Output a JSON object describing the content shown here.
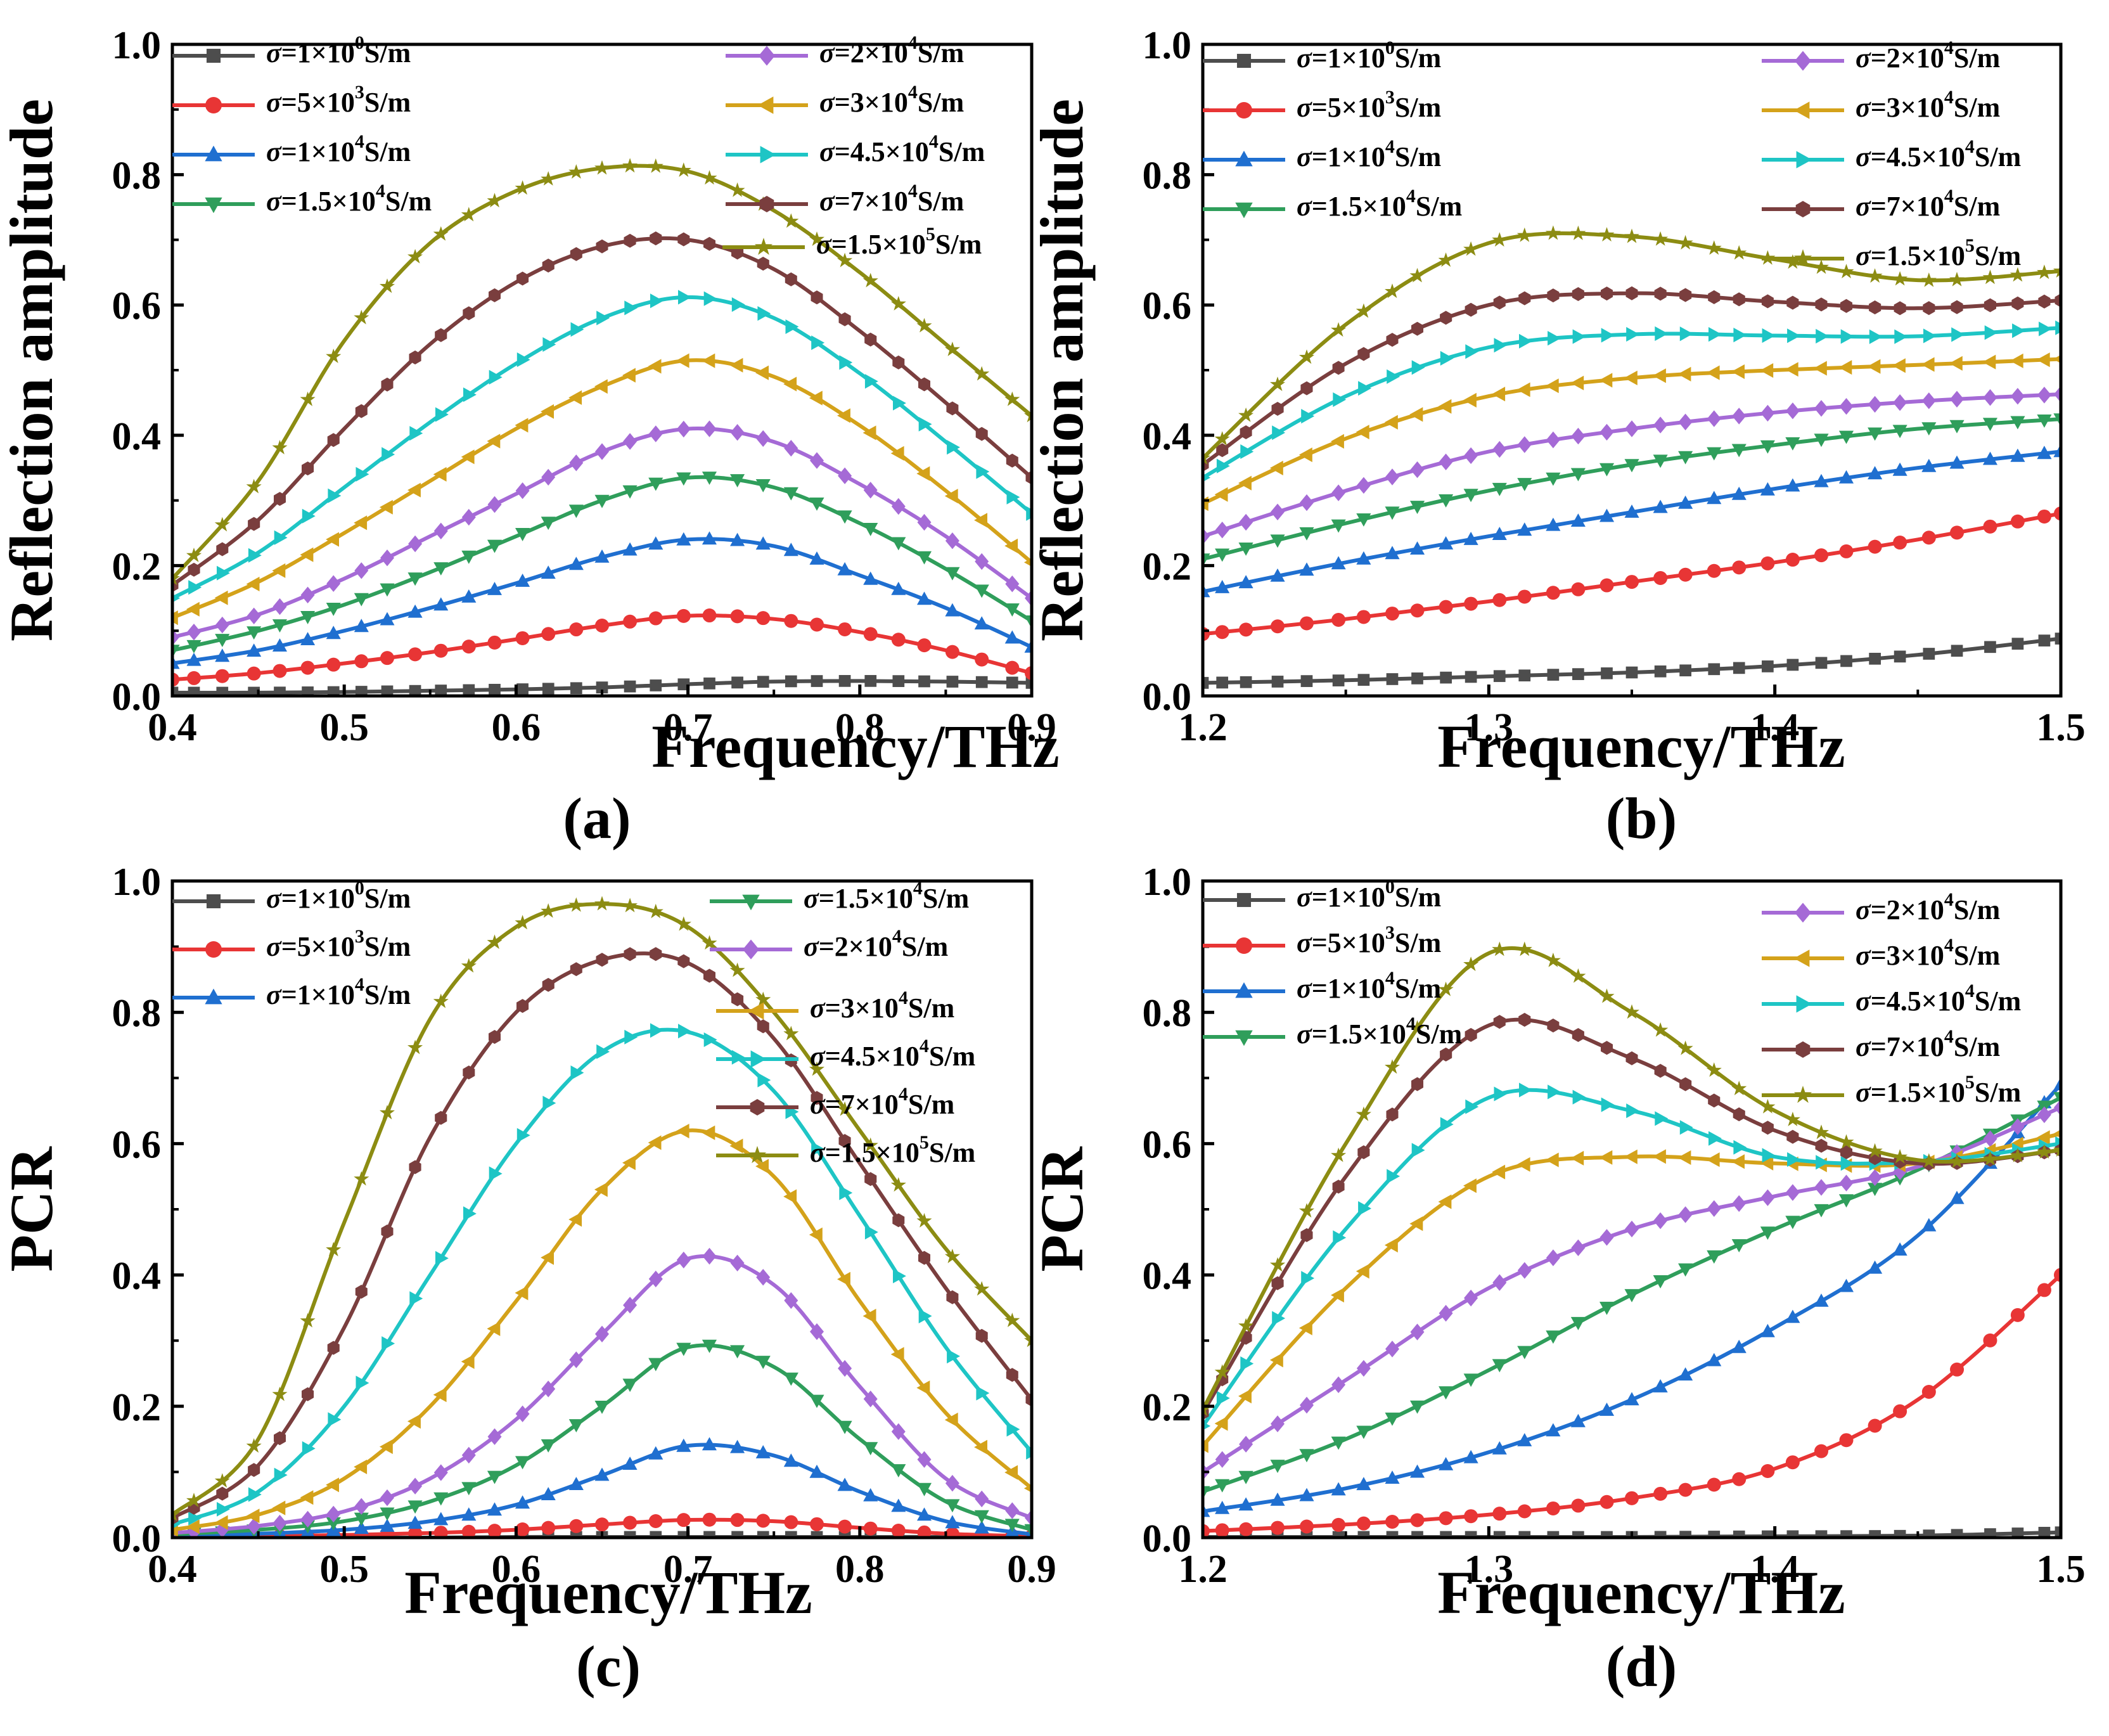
{
  "figure": {
    "xlabel": "Frequency/THz",
    "series_labels": [
      {
        "pre": "σ",
        "eq": "=1×10",
        "exp": "0",
        "unit": "S/m",
        "color": "#4d4d4d",
        "marker": "square"
      },
      {
        "pre": "σ",
        "eq": "=5×10",
        "exp": "3",
        "unit": "S/m",
        "color": "#e83535",
        "marker": "circle"
      },
      {
        "pre": "σ",
        "eq": "=1×10",
        "exp": "4",
        "unit": "S/m",
        "color": "#1f6fd0",
        "marker": "triangle-up"
      },
      {
        "pre": "σ",
        "eq": "=1.5×10",
        "exp": "4",
        "unit": "S/m",
        "color": "#2f9e5b",
        "marker": "triangle-down"
      },
      {
        "pre": "σ",
        "eq": "=2×10",
        "exp": "4",
        "unit": "S/m",
        "color": "#a56ad6",
        "marker": "diamond"
      },
      {
        "pre": "σ",
        "eq": "=3×10",
        "exp": "4",
        "unit": "S/m",
        "color": "#d4a21a",
        "marker": "triangle-left"
      },
      {
        "pre": "σ",
        "eq": "=4.5×10",
        "exp": "4",
        "unit": "S/m",
        "color": "#1ec5c5",
        "marker": "triangle-right"
      },
      {
        "pre": "σ",
        "eq": "=7×10",
        "exp": "4",
        "unit": "S/m",
        "color": "#7a3e3e",
        "marker": "hexagon"
      },
      {
        "pre": "σ",
        "eq": "=1.5×10",
        "exp": "5",
        "unit": "S/m",
        "color": "#8c8c12",
        "marker": "star"
      }
    ]
  },
  "chart_data": [
    {
      "panel": "(a)",
      "type": "line",
      "xlabel": "Frequency/THz",
      "ylabel": "Reflection amplitude",
      "xlim": [
        0.4,
        0.9
      ],
      "ylim": [
        0.0,
        1.0
      ],
      "xticks": [
        "0.4",
        "0.5",
        "0.6",
        "0.7",
        "0.8",
        "0.9"
      ],
      "yticks": [
        "0.0",
        "0.2",
        "0.4",
        "0.6",
        "0.8",
        "1.0"
      ],
      "x": [
        0.4,
        0.45,
        0.5,
        0.55,
        0.6,
        0.65,
        0.7,
        0.75,
        0.8,
        0.85,
        0.9
      ],
      "series": [
        {
          "name": "σ=1×10^0 S/m",
          "values": [
            0.005,
            0.005,
            0.006,
            0.008,
            0.01,
            0.013,
            0.018,
            0.022,
            0.023,
            0.022,
            0.02
          ]
        },
        {
          "name": "σ=5×10^3 S/m",
          "values": [
            0.025,
            0.035,
            0.05,
            0.067,
            0.087,
            0.108,
            0.123,
            0.118,
            0.098,
            0.07,
            0.035
          ]
        },
        {
          "name": "σ=1×10^4 S/m",
          "values": [
            0.05,
            0.07,
            0.1,
            0.135,
            0.173,
            0.213,
            0.24,
            0.23,
            0.185,
            0.135,
            0.075
          ]
        },
        {
          "name": "σ=1.5×10^4 S/m",
          "values": [
            0.07,
            0.1,
            0.14,
            0.19,
            0.245,
            0.3,
            0.335,
            0.32,
            0.265,
            0.195,
            0.115
          ]
        },
        {
          "name": "σ=2×10^4 S/m",
          "values": [
            0.09,
            0.125,
            0.18,
            0.245,
            0.31,
            0.375,
            0.41,
            0.39,
            0.325,
            0.245,
            0.15
          ]
        },
        {
          "name": "σ=3×10^4 S/m",
          "values": [
            0.12,
            0.175,
            0.25,
            0.33,
            0.41,
            0.475,
            0.515,
            0.49,
            0.415,
            0.315,
            0.205
          ]
        },
        {
          "name": "σ=4.5×10^4 S/m",
          "values": [
            0.15,
            0.22,
            0.32,
            0.42,
            0.51,
            0.58,
            0.612,
            0.58,
            0.495,
            0.39,
            0.28
          ]
        },
        {
          "name": "σ=7×10^4 S/m",
          "values": [
            0.17,
            0.27,
            0.41,
            0.54,
            0.635,
            0.69,
            0.7,
            0.655,
            0.56,
            0.45,
            0.335
          ]
        },
        {
          "name": "σ=1.5×10^5 S/m",
          "values": [
            0.18,
            0.33,
            0.545,
            0.695,
            0.775,
            0.81,
            0.805,
            0.745,
            0.65,
            0.54,
            0.43
          ]
        }
      ]
    },
    {
      "panel": "(b)",
      "type": "line",
      "xlabel": "Frequency/THz",
      "ylabel": "Reflection amplitude",
      "xlim": [
        1.2,
        1.5
      ],
      "ylim": [
        0.0,
        1.0
      ],
      "xticks": [
        "1.2",
        "1.3",
        "1.4",
        "1.5"
      ],
      "yticks": [
        "0.0",
        "0.2",
        "0.4",
        "0.6",
        "0.8",
        "1.0"
      ],
      "x": [
        1.2,
        1.25,
        1.3,
        1.35,
        1.4,
        1.45,
        1.5
      ],
      "series": [
        {
          "name": "σ=1×10^0 S/m",
          "values": [
            0.02,
            0.024,
            0.03,
            0.036,
            0.046,
            0.063,
            0.088
          ]
        },
        {
          "name": "σ=5×10^3 S/m",
          "values": [
            0.095,
            0.118,
            0.145,
            0.175,
            0.205,
            0.24,
            0.28
          ]
        },
        {
          "name": "σ=1×10^4 S/m",
          "values": [
            0.16,
            0.205,
            0.245,
            0.282,
            0.318,
            0.35,
            0.375
          ]
        },
        {
          "name": "σ=1.5×10^4 S/m",
          "values": [
            0.21,
            0.265,
            0.315,
            0.355,
            0.385,
            0.41,
            0.425
          ]
        },
        {
          "name": "σ=2×10^4 S/m",
          "values": [
            0.245,
            0.315,
            0.375,
            0.41,
            0.435,
            0.452,
            0.463
          ]
        },
        {
          "name": "σ=3×10^4 S/m",
          "values": [
            0.295,
            0.395,
            0.46,
            0.488,
            0.5,
            0.508,
            0.517
          ]
        },
        {
          "name": "σ=4.5×10^4 S/m",
          "values": [
            0.335,
            0.46,
            0.535,
            0.555,
            0.553,
            0.552,
            0.565
          ]
        },
        {
          "name": "σ=7×10^4 S/m",
          "values": [
            0.355,
            0.51,
            0.6,
            0.618,
            0.605,
            0.595,
            0.607
          ]
        },
        {
          "name": "σ=1.5×10^5 S/m",
          "values": [
            0.365,
            0.57,
            0.695,
            0.705,
            0.67,
            0.638,
            0.652
          ]
        }
      ]
    },
    {
      "panel": "(c)",
      "type": "line",
      "xlabel": "Frequency/THz",
      "ylabel": "PCR",
      "xlim": [
        0.4,
        0.9
      ],
      "ylim": [
        0.0,
        1.0
      ],
      "xticks": [
        "0.4",
        "0.5",
        "0.6",
        "0.7",
        "0.8",
        "0.9"
      ],
      "yticks": [
        "0.0",
        "0.2",
        "0.4",
        "0.6",
        "0.8",
        "1.0"
      ],
      "x": [
        0.4,
        0.45,
        0.5,
        0.55,
        0.6,
        0.65,
        0.7,
        0.75,
        0.8,
        0.85,
        0.9
      ],
      "series": [
        {
          "name": "σ=1×10^0 S/m",
          "values": [
            0.0,
            0.0,
            0.0,
            0.0,
            0.001,
            0.001,
            0.001,
            0.001,
            0.001,
            0.001,
            0.0
          ]
        },
        {
          "name": "σ=5×10^3 S/m",
          "values": [
            0.001,
            0.002,
            0.004,
            0.007,
            0.012,
            0.02,
            0.027,
            0.025,
            0.015,
            0.006,
            0.002
          ]
        },
        {
          "name": "σ=1×10^4 S/m",
          "values": [
            0.003,
            0.006,
            0.012,
            0.025,
            0.05,
            0.095,
            0.14,
            0.125,
            0.07,
            0.025,
            0.005
          ]
        },
        {
          "name": "σ=1.5×10^4 S/m",
          "values": [
            0.005,
            0.012,
            0.025,
            0.055,
            0.11,
            0.2,
            0.29,
            0.26,
            0.15,
            0.055,
            0.012
          ]
        },
        {
          "name": "σ=2×10^4 S/m",
          "values": [
            0.007,
            0.018,
            0.04,
            0.09,
            0.18,
            0.31,
            0.425,
            0.385,
            0.23,
            0.09,
            0.03
          ]
        },
        {
          "name": "σ=3×10^4 S/m",
          "values": [
            0.012,
            0.035,
            0.09,
            0.2,
            0.36,
            0.53,
            0.62,
            0.55,
            0.36,
            0.19,
            0.075
          ]
        },
        {
          "name": "σ=4.5×10^4 S/m",
          "values": [
            0.02,
            0.07,
            0.2,
            0.4,
            0.6,
            0.74,
            0.77,
            0.68,
            0.49,
            0.29,
            0.13
          ]
        },
        {
          "name": "σ=7×10^4 S/m",
          "values": [
            0.03,
            0.11,
            0.32,
            0.61,
            0.8,
            0.88,
            0.875,
            0.76,
            0.57,
            0.38,
            0.21
          ]
        },
        {
          "name": "σ=1.5×10^5 S/m",
          "values": [
            0.035,
            0.15,
            0.48,
            0.79,
            0.93,
            0.965,
            0.93,
            0.8,
            0.62,
            0.44,
            0.3
          ]
        }
      ]
    },
    {
      "panel": "(d)",
      "type": "line",
      "xlabel": "Frequency/THz",
      "ylabel": "PCR",
      "xlim": [
        1.2,
        1.5
      ],
      "ylim": [
        0.0,
        1.0
      ],
      "xticks": [
        "1.2",
        "1.3",
        "1.4",
        "1.5"
      ],
      "yticks": [
        "0.0",
        "0.2",
        "0.4",
        "0.6",
        "0.8",
        "1.0"
      ],
      "x": [
        1.2,
        1.25,
        1.3,
        1.35,
        1.4,
        1.45,
        1.5
      ],
      "series": [
        {
          "name": "σ=1×10^0 S/m",
          "values": [
            0.001,
            0.001,
            0.001,
            0.001,
            0.002,
            0.003,
            0.008
          ]
        },
        {
          "name": "σ=5×10^3 S/m",
          "values": [
            0.01,
            0.02,
            0.035,
            0.06,
            0.105,
            0.21,
            0.4
          ]
        },
        {
          "name": "σ=1×10^4 S/m",
          "values": [
            0.04,
            0.075,
            0.13,
            0.21,
            0.32,
            0.46,
            0.69
          ]
        },
        {
          "name": "σ=1.5×10^4 S/m",
          "values": [
            0.07,
            0.15,
            0.255,
            0.37,
            0.47,
            0.56,
            0.67
          ]
        },
        {
          "name": "σ=2×10^4 S/m",
          "values": [
            0.1,
            0.24,
            0.38,
            0.47,
            0.52,
            0.565,
            0.655
          ]
        },
        {
          "name": "σ=3×10^4 S/m",
          "values": [
            0.14,
            0.38,
            0.55,
            0.58,
            0.57,
            0.57,
            0.615
          ]
        },
        {
          "name": "σ=4.5×10^4 S/m",
          "values": [
            0.17,
            0.47,
            0.67,
            0.65,
            0.58,
            0.572,
            0.6
          ]
        },
        {
          "name": "σ=7×10^4 S/m",
          "values": [
            0.19,
            0.55,
            0.78,
            0.73,
            0.62,
            0.57,
            0.59
          ]
        },
        {
          "name": "σ=1.5×10^5 S/m",
          "values": [
            0.195,
            0.6,
            0.89,
            0.8,
            0.65,
            0.575,
            0.59
          ]
        }
      ]
    }
  ]
}
